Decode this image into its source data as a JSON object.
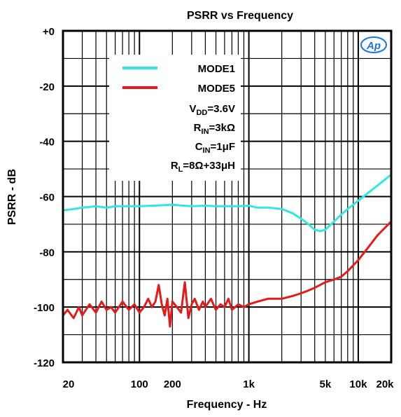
{
  "chart_data": {
    "type": "line",
    "title": "PSRR vs  Frequency",
    "xlabel": "Frequency - Hz",
    "ylabel": "PSRR - dB",
    "x_scale": "log",
    "xlim": [
      20,
      20000
    ],
    "ylim": [
      -120,
      0
    ],
    "x_tick_labels": [
      {
        "value": 20,
        "label": "20"
      },
      {
        "value": 100,
        "label": "100"
      },
      {
        "value": 200,
        "label": "200"
      },
      {
        "value": 1000,
        "label": "1k"
      },
      {
        "value": 5000,
        "label": "5k"
      },
      {
        "value": 10000,
        "label": "10k"
      },
      {
        "value": 20000,
        "label": "20k"
      }
    ],
    "y_tick_labels": [
      {
        "value": 0,
        "label": "+0"
      },
      {
        "value": -20,
        "label": "-20"
      },
      {
        "value": -40,
        "label": "-40"
      },
      {
        "value": -60,
        "label": "-60"
      },
      {
        "value": -80,
        "label": "-80"
      },
      {
        "value": -100,
        "label": "-100"
      },
      {
        "value": -120,
        "label": "-120"
      }
    ],
    "grid": true,
    "legend_position": "top-left",
    "conditions": [
      {
        "main": "V",
        "sub": "DD",
        "rest": "=3.6V"
      },
      {
        "main": "R",
        "sub": "IN",
        "rest": "=3kΩ"
      },
      {
        "main": "C",
        "sub": "IN",
        "rest": "=1μF"
      },
      {
        "main": "R",
        "sub": "L",
        "rest": "=8Ω+33μH"
      }
    ],
    "logo_text": "Ap",
    "series": [
      {
        "name": "MODE1",
        "color": "#33e6e6",
        "x": [
          20,
          25,
          30,
          40,
          50,
          60,
          80,
          100,
          150,
          200,
          300,
          400,
          500,
          600,
          800,
          1000,
          1200,
          1500,
          2000,
          2500,
          3000,
          3500,
          4000,
          4500,
          5000,
          6000,
          7000,
          8000,
          10000,
          12000,
          15000,
          20000
        ],
        "y": [
          -65,
          -64.5,
          -64,
          -63.5,
          -64,
          -63.5,
          -63.5,
          -63.5,
          -63.2,
          -63,
          -63.5,
          -63.3,
          -63.5,
          -63.5,
          -63.5,
          -63.3,
          -64,
          -64,
          -64.5,
          -66,
          -68,
          -70,
          -72,
          -72.5,
          -72,
          -69,
          -66.5,
          -64.5,
          -61.5,
          -59,
          -56,
          -52
        ]
      },
      {
        "name": "MODE5",
        "color": "#e61a1a",
        "x": [
          20,
          22,
          25,
          28,
          30,
          35,
          40,
          45,
          50,
          55,
          60,
          70,
          80,
          90,
          100,
          110,
          120,
          130,
          140,
          150,
          160,
          170,
          180,
          190,
          200,
          220,
          240,
          260,
          280,
          300,
          320,
          350,
          380,
          400,
          450,
          500,
          550,
          600,
          650,
          700,
          800,
          900,
          1000,
          1200,
          1500,
          2000,
          2500,
          3000,
          3500,
          4000,
          5000,
          6000,
          7000,
          8000,
          10000,
          12000,
          15000,
          20000
        ],
        "y": [
          -103,
          -101,
          -104,
          -100,
          -103,
          -99,
          -102,
          -98,
          -101,
          -100,
          -102,
          -98,
          -101,
          -99,
          -102,
          -100,
          -97,
          -100,
          -98,
          -92,
          -99,
          -103,
          -97,
          -107,
          -98,
          -100,
          -102,
          -91,
          -104,
          -99,
          -97,
          -101,
          -98,
          -100,
          -97,
          -101,
          -99,
          -100,
          -97,
          -101,
          -99,
          -100,
          -99,
          -98,
          -97,
          -97,
          -96,
          -95,
          -94,
          -93,
          -91,
          -90,
          -89,
          -87,
          -83,
          -79,
          -74,
          -69
        ]
      }
    ]
  }
}
